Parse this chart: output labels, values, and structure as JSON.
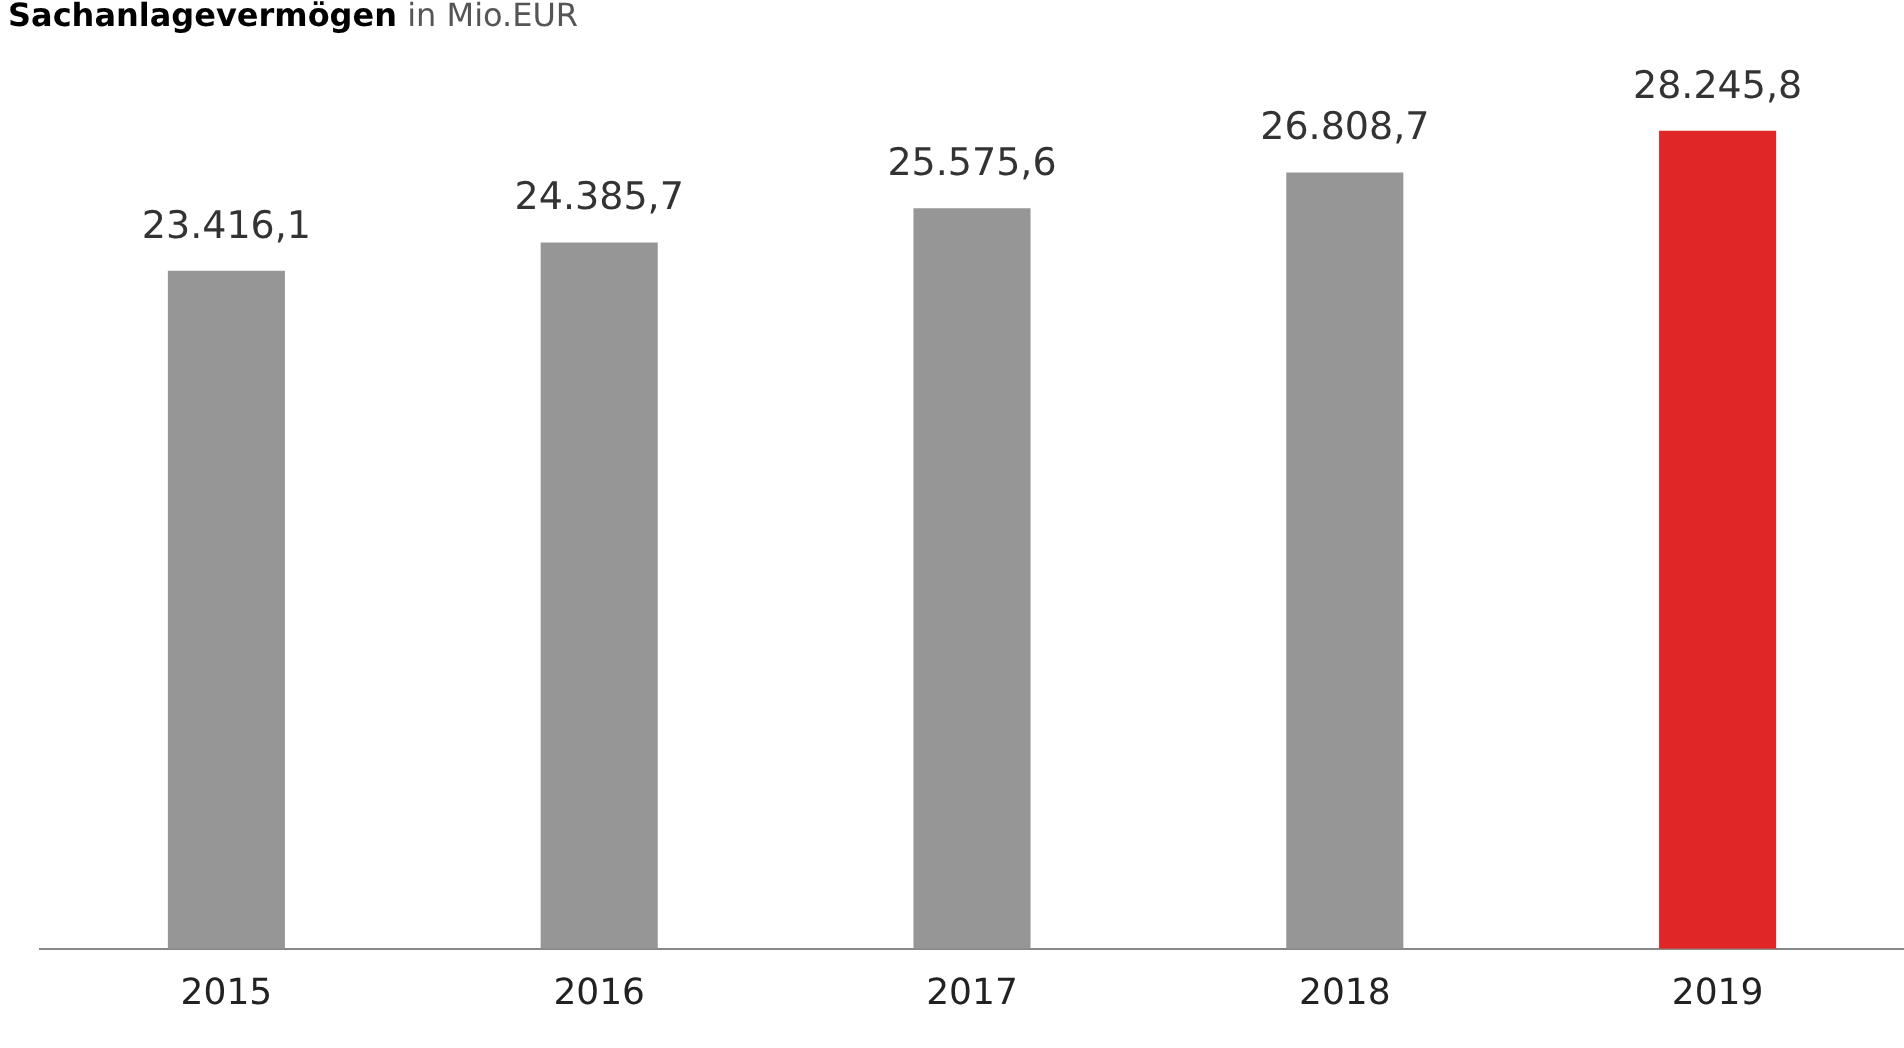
{
  "chart_data": {
    "type": "bar",
    "title": "Sachanlagevermögen",
    "subtitle": "in Mio.EUR",
    "categories": [
      "2015",
      "2016",
      "2017",
      "2018",
      "2019"
    ],
    "values": [
      23416.1,
      24385.7,
      25575.6,
      26808.7,
      28245.8
    ],
    "colors": [
      "#969696",
      "#969696",
      "#969696",
      "#969696",
      "#e02626"
    ],
    "value_labels": [
      "23.416,1",
      "24.385,7",
      "25.575,6",
      "26.808,7",
      "28.245,8"
    ],
    "tick_labels": "x",
    "grid": false,
    "legend": false
  }
}
